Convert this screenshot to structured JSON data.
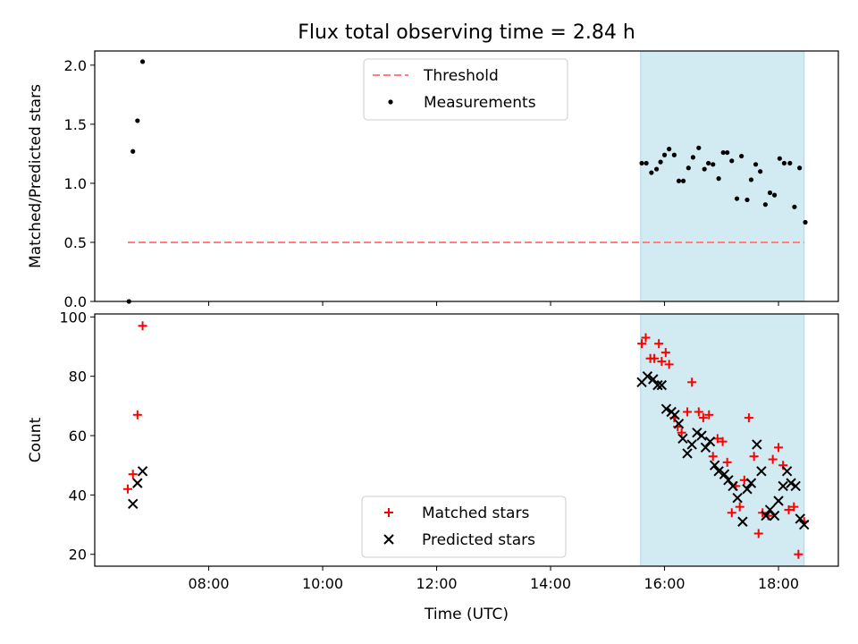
{
  "chart_data": {
    "type": "scatter",
    "title": "Flux total observing time = 2.84 h",
    "xlabel": "Time (UTC)",
    "x_ticks": [
      "08:00",
      "10:00",
      "12:00",
      "14:00",
      "16:00",
      "18:00"
    ],
    "x_tick_hours": [
      8,
      10,
      12,
      14,
      16,
      18
    ],
    "xlim_hours": [
      6.0,
      19.05
    ],
    "highlight_band_hours": [
      15.58,
      18.45
    ],
    "highlight_color": "#add8e6",
    "panels": [
      {
        "ylabel": "Matched/Predicted stars",
        "ylim": [
          0,
          2.12
        ],
        "y_ticks": [
          "0.0",
          "0.5",
          "1.0",
          "1.5",
          "2.0"
        ],
        "y_tick_values": [
          0,
          0.5,
          1.0,
          1.5,
          2.0
        ],
        "legend_position": "top-center",
        "series": [
          {
            "name": "Threshold",
            "marker": "dashed-line",
            "color": "#ff7f7f",
            "x_hours": [
              6.58,
              18.45
            ],
            "y": [
              0.5,
              0.5
            ]
          },
          {
            "name": "Measurements",
            "marker": "dot",
            "color": "#000000",
            "x_hours": [
              6.6,
              6.67,
              6.75,
              6.84,
              15.6,
              15.68,
              15.77,
              15.86,
              15.93,
              16.0,
              16.08,
              16.17,
              16.25,
              16.33,
              16.42,
              16.5,
              16.6,
              16.7,
              16.77,
              16.85,
              16.95,
              17.03,
              17.1,
              17.18,
              17.27,
              17.35,
              17.45,
              17.52,
              17.6,
              17.68,
              17.77,
              17.85,
              17.93,
              18.02,
              18.1,
              18.2,
              18.28,
              18.37,
              18.47
            ],
            "y": [
              0.0,
              1.27,
              1.53,
              2.03,
              1.17,
              1.17,
              1.09,
              1.12,
              1.18,
              1.24,
              1.29,
              1.24,
              1.02,
              1.02,
              1.13,
              1.22,
              1.3,
              1.12,
              1.17,
              1.16,
              1.04,
              1.26,
              1.26,
              1.19,
              0.87,
              1.23,
              0.86,
              1.03,
              1.16,
              1.1,
              0.82,
              0.92,
              0.9,
              1.21,
              1.17,
              1.17,
              0.8,
              1.13,
              0.67
            ]
          }
        ]
      },
      {
        "ylabel": "Count",
        "ylim": [
          16,
          101
        ],
        "y_ticks": [
          "20",
          "40",
          "60",
          "80",
          "100"
        ],
        "y_tick_values": [
          20,
          40,
          60,
          80,
          100
        ],
        "legend_position": "bottom-center",
        "series": [
          {
            "name": "Matched stars",
            "marker": "plus",
            "color": "#ff0000",
            "x_hours": [
              6.58,
              6.67,
              6.75,
              6.84,
              15.6,
              15.67,
              15.75,
              15.82,
              15.9,
              15.95,
              16.02,
              16.08,
              16.17,
              16.23,
              16.3,
              16.4,
              16.48,
              16.6,
              16.68,
              16.78,
              16.85,
              16.93,
              17.02,
              17.1,
              17.18,
              17.25,
              17.32,
              17.4,
              17.48,
              17.57,
              17.65,
              17.72,
              17.82,
              17.9,
              18.0,
              18.08,
              18.18,
              18.27,
              18.35,
              18.45
            ],
            "y": [
              42,
              47,
              67,
              97,
              91,
              93,
              86,
              86,
              91,
              85,
              88,
              84,
              66,
              63,
              61,
              68,
              78,
              68,
              66,
              67,
              53,
              59,
              58,
              51,
              34,
              43,
              36,
              45,
              66,
              53,
              27,
              34,
              33,
              52,
              56,
              50,
              35,
              36,
              20,
              31
            ]
          },
          {
            "name": "Predicted stars",
            "marker": "x",
            "color": "#000000",
            "x_hours": [
              6.67,
              6.75,
              6.84,
              15.6,
              15.7,
              15.8,
              15.88,
              15.95,
              16.03,
              16.12,
              16.18,
              16.25,
              16.32,
              16.4,
              16.48,
              16.57,
              16.65,
              16.72,
              16.8,
              16.88,
              16.95,
              17.05,
              17.12,
              17.2,
              17.28,
              17.37,
              17.45,
              17.52,
              17.62,
              17.7,
              17.78,
              17.85,
              17.93,
              18.0,
              18.08,
              18.15,
              18.22,
              18.3,
              18.38,
              18.45
            ],
            "y": [
              37,
              44,
              48,
              78,
              80,
              79,
              77,
              77,
              69,
              68,
              67,
              64,
              59,
              54,
              57,
              61,
              60,
              56,
              58,
              50,
              48,
              47,
              45,
              43,
              39,
              31,
              42,
              44,
              57,
              48,
              33,
              35,
              33,
              38,
              43,
              48,
              44,
              43,
              32,
              30
            ]
          }
        ]
      }
    ]
  }
}
